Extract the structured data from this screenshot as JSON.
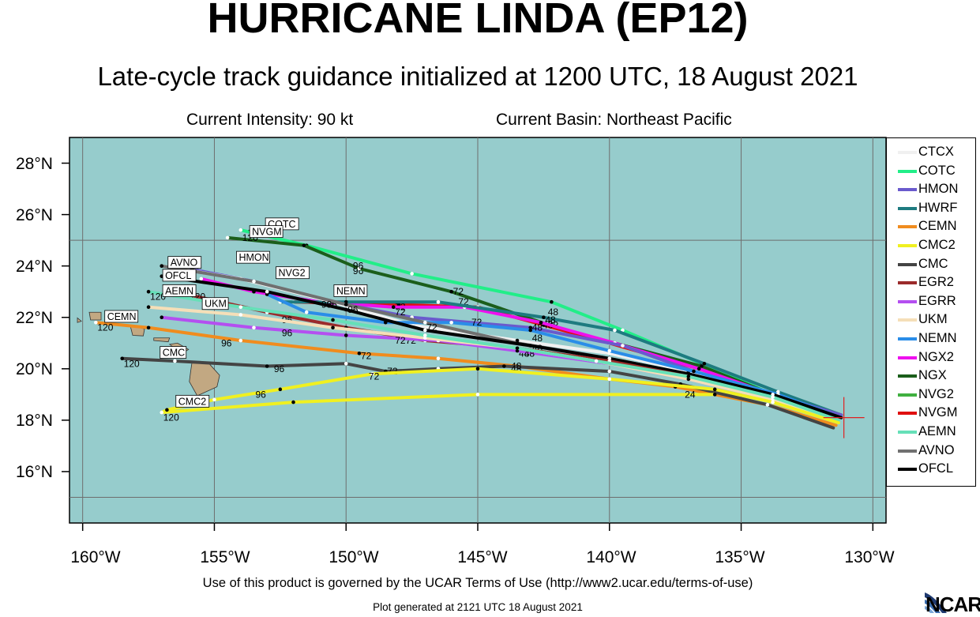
{
  "header": {
    "title": "HURRICANE LINDA (EP12)",
    "subtitle": "Late-cycle track guidance initialized at 1200 UTC, 18 August 2021",
    "intensity": "Current Intensity: 90 kt",
    "basin": "Current Basin: Northeast Pacific"
  },
  "axes": {
    "lat_labels": [
      "28°N",
      "26°N",
      "24°N",
      "22°N",
      "20°N",
      "18°N",
      "16°N"
    ],
    "lon_labels": [
      "160°W",
      "155°W",
      "150°W",
      "145°W",
      "140°W",
      "135°W",
      "130°W"
    ],
    "lat_range": [
      14.0,
      29.0
    ],
    "lon_range": [
      -160.5,
      -129.5
    ]
  },
  "colors": {
    "ocean": "#96cccc",
    "land": "#c2a882",
    "grid": "#6e6e6e",
    "current_position": "#e02020"
  },
  "current_position": {
    "lat": 18.1,
    "lon": -131.1
  },
  "legend": [
    {
      "name": "CTCX",
      "color": "#f0f0f0"
    },
    {
      "name": "COTC",
      "color": "#22ee88"
    },
    {
      "name": "HMON",
      "color": "#6a5acd"
    },
    {
      "name": "HWRF",
      "color": "#1e7b80"
    },
    {
      "name": "CEMN",
      "color": "#f08c1e"
    },
    {
      "name": "CMC2",
      "color": "#f0f020"
    },
    {
      "name": "CMC",
      "color": "#444444"
    },
    {
      "name": "EGR2",
      "color": "#9b2b2b"
    },
    {
      "name": "EGRR",
      "color": "#b44ff0"
    },
    {
      "name": "UKM",
      "color": "#f5dfb8"
    },
    {
      "name": "NEMN",
      "color": "#2a8de8"
    },
    {
      "name": "NGX2",
      "color": "#ee10ee"
    },
    {
      "name": "NGX",
      "color": "#1b5e1b"
    },
    {
      "name": "NVG2",
      "color": "#40b040"
    },
    {
      "name": "NVGM",
      "color": "#e01010"
    },
    {
      "name": "AEMN",
      "color": "#66e0b8"
    },
    {
      "name": "AVNO",
      "color": "#707070"
    },
    {
      "name": "OFCL",
      "color": "#000000"
    }
  ],
  "tracks": [
    {
      "name": "COTC",
      "color": "#22ee88",
      "points": [
        [
          18.1,
          -131.2
        ],
        [
          19.0,
          -133.8
        ],
        [
          20.2,
          -136.5
        ],
        [
          21.5,
          -139.5
        ],
        [
          22.6,
          -142.2
        ],
        [
          23.7,
          -147.5
        ],
        [
          24.8,
          -151.5
        ],
        [
          25.4,
          -154.0
        ]
      ],
      "labels": [
        [
          22.2,
          -142.4,
          "48"
        ],
        [
          22.6,
          -145.8,
          "72"
        ],
        [
          23.8,
          -149.8,
          "96"
        ],
        [
          25.3,
          -153.8,
          "120"
        ]
      ]
    },
    {
      "name": "NGX",
      "color": "#1b5e1b",
      "points": [
        [
          18.2,
          -131.2
        ],
        [
          19.0,
          -133.8
        ],
        [
          20.1,
          -136.5
        ],
        [
          21.6,
          -142.0
        ],
        [
          23.0,
          -146.0
        ],
        [
          23.9,
          -149.5
        ],
        [
          24.8,
          -151.6
        ],
        [
          25.1,
          -154.5
        ]
      ],
      "labels": [
        [
          21.8,
          -142.4,
          "48"
        ],
        [
          23.0,
          -146.0,
          "72"
        ],
        [
          24.0,
          -149.8,
          "96"
        ],
        [
          25.1,
          -154.0,
          "120"
        ]
      ]
    },
    {
      "name": "NVGM",
      "color": "#e01010",
      "points": [
        [
          18.2,
          -131.2
        ],
        [
          19.0,
          -133.8
        ],
        [
          20.0,
          -136.6
        ],
        [
          21.0,
          -140.0
        ],
        [
          21.7,
          -142.5
        ],
        [
          22.4,
          -145.0
        ],
        [
          22.5,
          -148.0
        ],
        [
          22.6,
          -152.0
        ]
      ],
      "labels": [
        [
          21.7,
          -142.6,
          "48"
        ],
        [
          22.4,
          -148.2,
          "72"
        ]
      ]
    },
    {
      "name": "NGX2",
      "color": "#ee10ee",
      "points": [
        [
          18.2,
          -131.2
        ],
        [
          19.0,
          -133.8
        ],
        [
          20.0,
          -136.6
        ],
        [
          21.0,
          -139.8
        ],
        [
          21.8,
          -142.6
        ],
        [
          22.4,
          -145.5
        ],
        [
          22.4,
          -148.2
        ],
        [
          22.6,
          -151.0
        ],
        [
          23.0,
          -153.5
        ],
        [
          23.5,
          -155.5
        ]
      ],
      "labels": []
    },
    {
      "name": "HWRF",
      "color": "#1e7b80",
      "points": [
        [
          18.2,
          -131.2
        ],
        [
          19.1,
          -133.6
        ],
        [
          20.2,
          -136.4
        ],
        [
          21.5,
          -139.8
        ],
        [
          22.0,
          -142.5
        ],
        [
          22.6,
          -146.5
        ],
        [
          22.6,
          -150.0
        ],
        [
          22.6,
          -152.5
        ]
      ],
      "labels": [
        [
          21.9,
          -142.5,
          "48"
        ]
      ]
    },
    {
      "name": "HMON",
      "color": "#6a5acd",
      "points": [
        [
          18.2,
          -131.2
        ],
        [
          19.0,
          -133.8
        ],
        [
          19.9,
          -136.8
        ],
        [
          20.9,
          -139.5
        ],
        [
          21.6,
          -143.0
        ],
        [
          22.0,
          -147.5
        ],
        [
          22.6,
          -150.5
        ],
        [
          23.4,
          -153.5
        ],
        [
          24.0,
          -156.5
        ]
      ],
      "labels": [
        [
          24.0,
          -156.2,
          "120"
        ]
      ]
    },
    {
      "name": "CTCX",
      "color": "#f0f0f0",
      "points": [
        [
          18.1,
          -131.2
        ],
        [
          19.0,
          -133.8
        ],
        [
          19.9,
          -137.0
        ],
        [
          20.6,
          -140.0
        ],
        [
          21.1,
          -143.5
        ],
        [
          21.7,
          -147.5
        ],
        [
          22.6,
          -150.5
        ],
        [
          23.5,
          -154.0
        ],
        [
          24.0,
          -157.0
        ]
      ],
      "labels": []
    },
    {
      "name": "NEMN",
      "color": "#2a8de8",
      "points": [
        [
          18.1,
          -131.2
        ],
        [
          19.0,
          -133.6
        ],
        [
          19.9,
          -136.8
        ],
        [
          20.7,
          -140.0
        ],
        [
          21.5,
          -143.0
        ],
        [
          21.8,
          -146.0
        ],
        [
          21.8,
          -148.5
        ],
        [
          22.2,
          -151.5
        ],
        [
          22.9,
          -153.0
        ]
      ],
      "labels": [
        [
          21.6,
          -143.0,
          "48"
        ],
        [
          21.8,
          -145.3,
          "72"
        ],
        [
          22.5,
          -150.8,
          "96"
        ]
      ]
    },
    {
      "name": "AVNO",
      "color": "#707070",
      "points": [
        [
          18.1,
          -131.2
        ],
        [
          18.9,
          -133.6
        ],
        [
          19.8,
          -137.0
        ],
        [
          20.4,
          -140.0
        ],
        [
          21.0,
          -143.5
        ],
        [
          21.8,
          -147.0
        ],
        [
          22.5,
          -150.0
        ],
        [
          23.4,
          -153.5
        ],
        [
          24.0,
          -157.0
        ]
      ],
      "labels": [
        [
          21.2,
          -143.0,
          "48"
        ],
        [
          22.2,
          -148.2,
          "72"
        ],
        [
          22.5,
          -151.0,
          "96"
        ]
      ]
    },
    {
      "name": "OFCL",
      "color": "#000000",
      "points": [
        [
          18.1,
          -131.2
        ],
        [
          19.0,
          -133.8
        ],
        [
          19.8,
          -137.0
        ],
        [
          20.4,
          -140.0
        ],
        [
          20.9,
          -143.0
        ],
        [
          21.5,
          -147.0
        ],
        [
          22.3,
          -150.0
        ],
        [
          23.0,
          -153.0
        ],
        [
          23.6,
          -157.0
        ]
      ],
      "labels": [
        [
          20.8,
          -143.0,
          "48"
        ],
        [
          21.6,
          -147.0,
          "72"
        ],
        [
          22.3,
          -150.0,
          "96"
        ],
        [
          23.6,
          -157.0,
          "120"
        ]
      ]
    },
    {
      "name": "EGR2",
      "color": "#9b2b2b",
      "points": [
        [
          18.0,
          -131.3
        ],
        [
          18.8,
          -133.8
        ],
        [
          19.7,
          -137.0
        ],
        [
          20.3,
          -140.0
        ],
        [
          20.8,
          -143.5
        ],
        [
          21.1,
          -147.0
        ],
        [
          21.6,
          -150.0
        ],
        [
          22.2,
          -153.0
        ],
        [
          23.0,
          -156.5
        ]
      ],
      "labels": [
        [
          20.6,
          -143.5,
          "48"
        ],
        [
          21.1,
          -147.8,
          "72"
        ],
        [
          21.9,
          -152.5,
          "96"
        ],
        [
          22.8,
          -156.0,
          "120"
        ]
      ]
    },
    {
      "name": "EGRR",
      "color": "#b44ff0",
      "points": [
        [
          18.0,
          -131.3
        ],
        [
          18.8,
          -133.8
        ],
        [
          19.6,
          -137.0
        ],
        [
          20.2,
          -140.0
        ],
        [
          20.7,
          -143.5
        ],
        [
          21.1,
          -146.5
        ],
        [
          21.3,
          -150.0
        ],
        [
          21.6,
          -153.5
        ],
        [
          22.0,
          -157.0
        ]
      ],
      "labels": [
        [
          20.6,
          -143.3,
          "48"
        ],
        [
          21.1,
          -148.2,
          "72"
        ],
        [
          21.4,
          -152.5,
          "96"
        ]
      ]
    },
    {
      "name": "UKM",
      "color": "#f5dfb8",
      "points": [
        [
          18.0,
          -131.3
        ],
        [
          18.8,
          -133.8
        ],
        [
          19.6,
          -137.0
        ],
        [
          20.3,
          -140.5
        ],
        [
          20.8,
          -143.5
        ],
        [
          21.2,
          -147.0
        ],
        [
          21.6,
          -150.5
        ],
        [
          22.1,
          -154.0
        ],
        [
          22.4,
          -157.5
        ]
      ],
      "labels": []
    },
    {
      "name": "AEMN",
      "color": "#66e0b8",
      "points": [
        [
          18.0,
          -131.3
        ],
        [
          18.9,
          -133.8
        ],
        [
          19.7,
          -137.0
        ],
        [
          20.3,
          -140.5
        ],
        [
          20.8,
          -143.5
        ],
        [
          21.3,
          -147.0
        ],
        [
          21.9,
          -150.5
        ],
        [
          22.4,
          -154.0
        ],
        [
          23.0,
          -157.5
        ]
      ],
      "labels": [
        [
          22.8,
          -157.5,
          "120"
        ]
      ]
    },
    {
      "name": "CEMN",
      "color": "#f08c1e",
      "points": [
        [
          17.8,
          -131.4
        ],
        [
          18.6,
          -134.0
        ],
        [
          19.3,
          -137.5
        ],
        [
          19.6,
          -140.0
        ],
        [
          20.1,
          -143.5
        ],
        [
          20.4,
          -146.5
        ],
        [
          20.6,
          -149.5
        ],
        [
          21.1,
          -154.0
        ],
        [
          21.6,
          -157.5
        ],
        [
          21.8,
          -159.5
        ]
      ],
      "labels": [
        [
          20.1,
          -143.8,
          "48"
        ],
        [
          20.5,
          -149.5,
          "72"
        ],
        [
          21.0,
          -154.8,
          "96"
        ],
        [
          21.6,
          -159.5,
          "120"
        ]
      ]
    },
    {
      "name": "CMC",
      "color": "#444444",
      "points": [
        [
          17.7,
          -131.5
        ],
        [
          18.6,
          -134.0
        ],
        [
          19.4,
          -137.3
        ],
        [
          19.9,
          -140.0
        ],
        [
          20.1,
          -144.0
        ],
        [
          20.0,
          -146.5
        ],
        [
          19.9,
          -148.5
        ],
        [
          20.2,
          -150.0
        ],
        [
          20.1,
          -153.0
        ],
        [
          20.3,
          -156.5
        ],
        [
          20.4,
          -158.5
        ]
      ],
      "labels": [
        [
          20.0,
          -143.8,
          "48"
        ],
        [
          19.9,
          -148.5,
          "72"
        ],
        [
          20.0,
          -152.8,
          "96"
        ],
        [
          20.2,
          -158.5,
          "120"
        ]
      ]
    },
    {
      "name": "CMC2",
      "color": "#f0f020",
      "points": [
        [
          17.9,
          -131.3
        ],
        [
          18.7,
          -133.8
        ],
        [
          19.2,
          -136.0
        ],
        [
          19.6,
          -140.0
        ],
        [
          20.0,
          -145.0
        ],
        [
          19.8,
          -149.0
        ],
        [
          19.2,
          -152.5
        ],
        [
          18.8,
          -155.0
        ],
        [
          18.4,
          -156.8
        ],
        [
          18.3,
          -157.0
        ],
        [
          18.7,
          -152.0
        ],
        [
          19.0,
          -145.0
        ],
        [
          19.0,
          -136.0
        ]
      ],
      "labels": [
        [
          19.0,
          -137.2,
          "24"
        ],
        [
          19.7,
          -149.2,
          "72"
        ],
        [
          19.0,
          -153.5,
          "96"
        ],
        [
          18.1,
          -157.0,
          "120"
        ]
      ]
    }
  ],
  "model_labels": [
    {
      "text": "COTC",
      "lat": 25.5,
      "lon": -153.0
    },
    {
      "text": "NVGM",
      "lat": 25.2,
      "lon": -153.6
    },
    {
      "text": "AVNO",
      "lat": 24.0,
      "lon": -156.7
    },
    {
      "text": "HMON",
      "lat": 24.2,
      "lon": -154.1
    },
    {
      "text": "NVG2",
      "lat": 23.6,
      "lon": -152.6
    },
    {
      "text": "OFCL",
      "lat": 23.5,
      "lon": -156.9
    },
    {
      "text": "AEMN",
      "lat": 22.9,
      "lon": -156.9
    },
    {
      "text": "NEMN",
      "lat": 22.9,
      "lon": -150.4
    },
    {
      "text": "UKM",
      "lat": 22.4,
      "lon": -155.4
    },
    {
      "text": "CEMN",
      "lat": 21.9,
      "lon": -159.1
    },
    {
      "text": "CMC",
      "lat": 20.5,
      "lon": -157.0
    },
    {
      "text": "CMC2",
      "lat": 18.6,
      "lon": -156.4
    }
  ],
  "footer": {
    "terms": "Use of this product is governed by the UCAR Terms of Use (http://www2.ucar.edu/terms-of-use)",
    "generated": "Plot generated at 2121 UTC   18 August 2021",
    "logo": "NCAR"
  }
}
